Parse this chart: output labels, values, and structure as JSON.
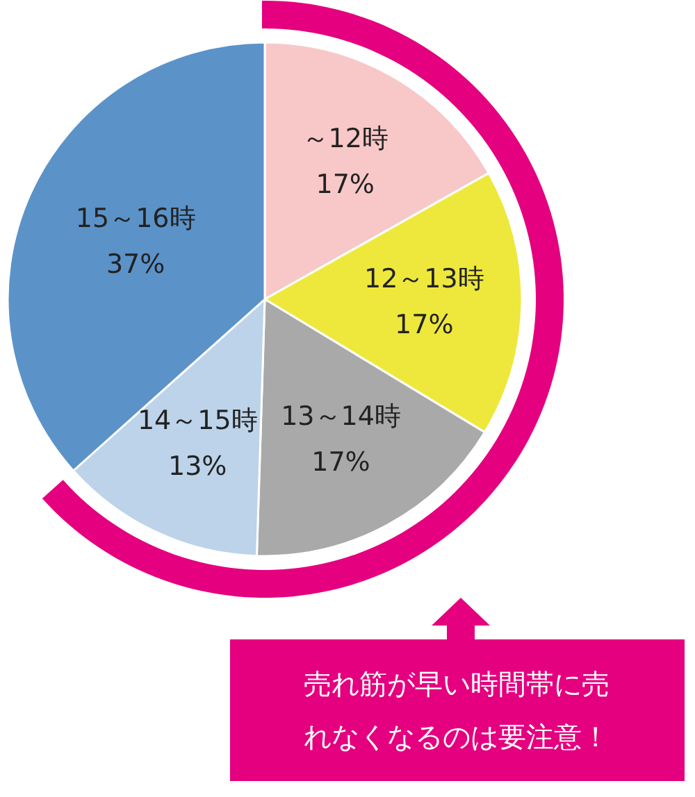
{
  "chart_data": {
    "type": "pie",
    "categories": [
      "～12時",
      "12～13時",
      "13～14時",
      "14～15時",
      "15～16時"
    ],
    "values": [
      17,
      17,
      17,
      13,
      37
    ],
    "colors": [
      "#f8c8c9",
      "#eee83c",
      "#a9a9a9",
      "#bcd3ea",
      "#5b93c9"
    ],
    "value_labels": [
      "17%",
      "17%",
      "17%",
      "13%",
      "37%"
    ],
    "annotations": [
      "売れ筋が早い時間帯に売れなくなるのは要注意！"
    ]
  }
}
